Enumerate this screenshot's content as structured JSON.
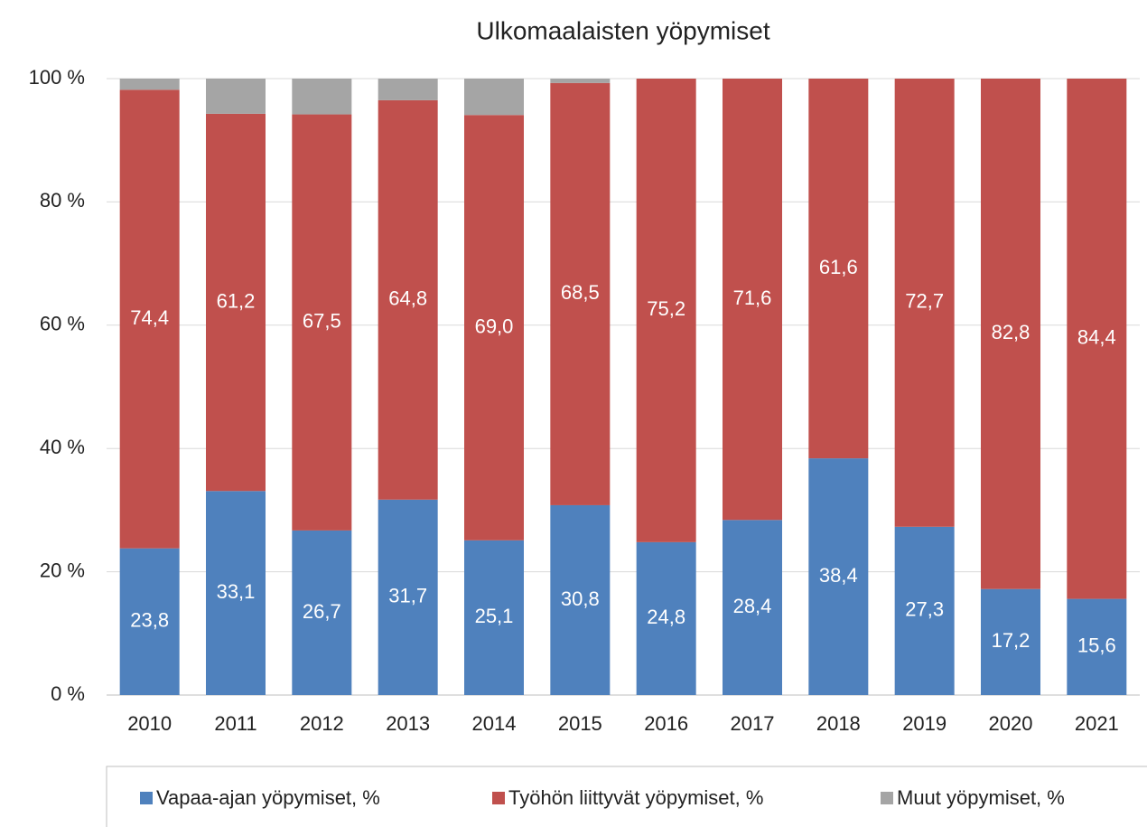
{
  "chart_data": {
    "type": "stacked_bar",
    "title": "Ulkomaalaisten yöpymiset",
    "categories": [
      "2010",
      "2011",
      "2012",
      "2013",
      "2014",
      "2015",
      "2016",
      "2017",
      "2018",
      "2019",
      "2020",
      "2021"
    ],
    "series": [
      {
        "name": "Vapaa-ajan yöpymiset, %",
        "color": "#4f81bd",
        "values": [
          23.8,
          33.1,
          26.7,
          31.7,
          25.1,
          30.8,
          24.8,
          28.4,
          38.4,
          27.3,
          17.2,
          15.6
        ],
        "value_labels": [
          "23,8",
          "33,1",
          "26,7",
          "31,7",
          "25,1",
          "30,8",
          "24,8",
          "28,4",
          "38,4",
          "27,3",
          "17,2",
          "15,6"
        ]
      },
      {
        "name": "Työhön liittyvät yöpymiset, %",
        "color": "#c0504d",
        "values": [
          74.4,
          61.2,
          67.5,
          64.8,
          69.0,
          68.5,
          75.2,
          71.6,
          61.6,
          72.7,
          82.8,
          84.4
        ],
        "value_labels": [
          "74,4",
          "61,2",
          "67,5",
          "64,8",
          "69,0",
          "68,5",
          "75,2",
          "71,6",
          "61,6",
          "72,7",
          "82,8",
          "84,4"
        ]
      },
      {
        "name": "Muut yöpymiset, %",
        "color": "#a5a5a5",
        "values": [
          1.8,
          5.7,
          5.8,
          3.5,
          5.9,
          0.7,
          0,
          0,
          0,
          0,
          0,
          0
        ]
      }
    ],
    "ylim": [
      0,
      100
    ],
    "yticks": [
      {
        "value": 0,
        "label": "0 %"
      },
      {
        "value": 20,
        "label": "20 %"
      },
      {
        "value": 40,
        "label": "40 %"
      },
      {
        "value": 60,
        "label": "60 %"
      },
      {
        "value": 80,
        "label": "80 %"
      },
      {
        "value": 100,
        "label": "100 %"
      }
    ],
    "grid": true,
    "legend": "bottom"
  }
}
